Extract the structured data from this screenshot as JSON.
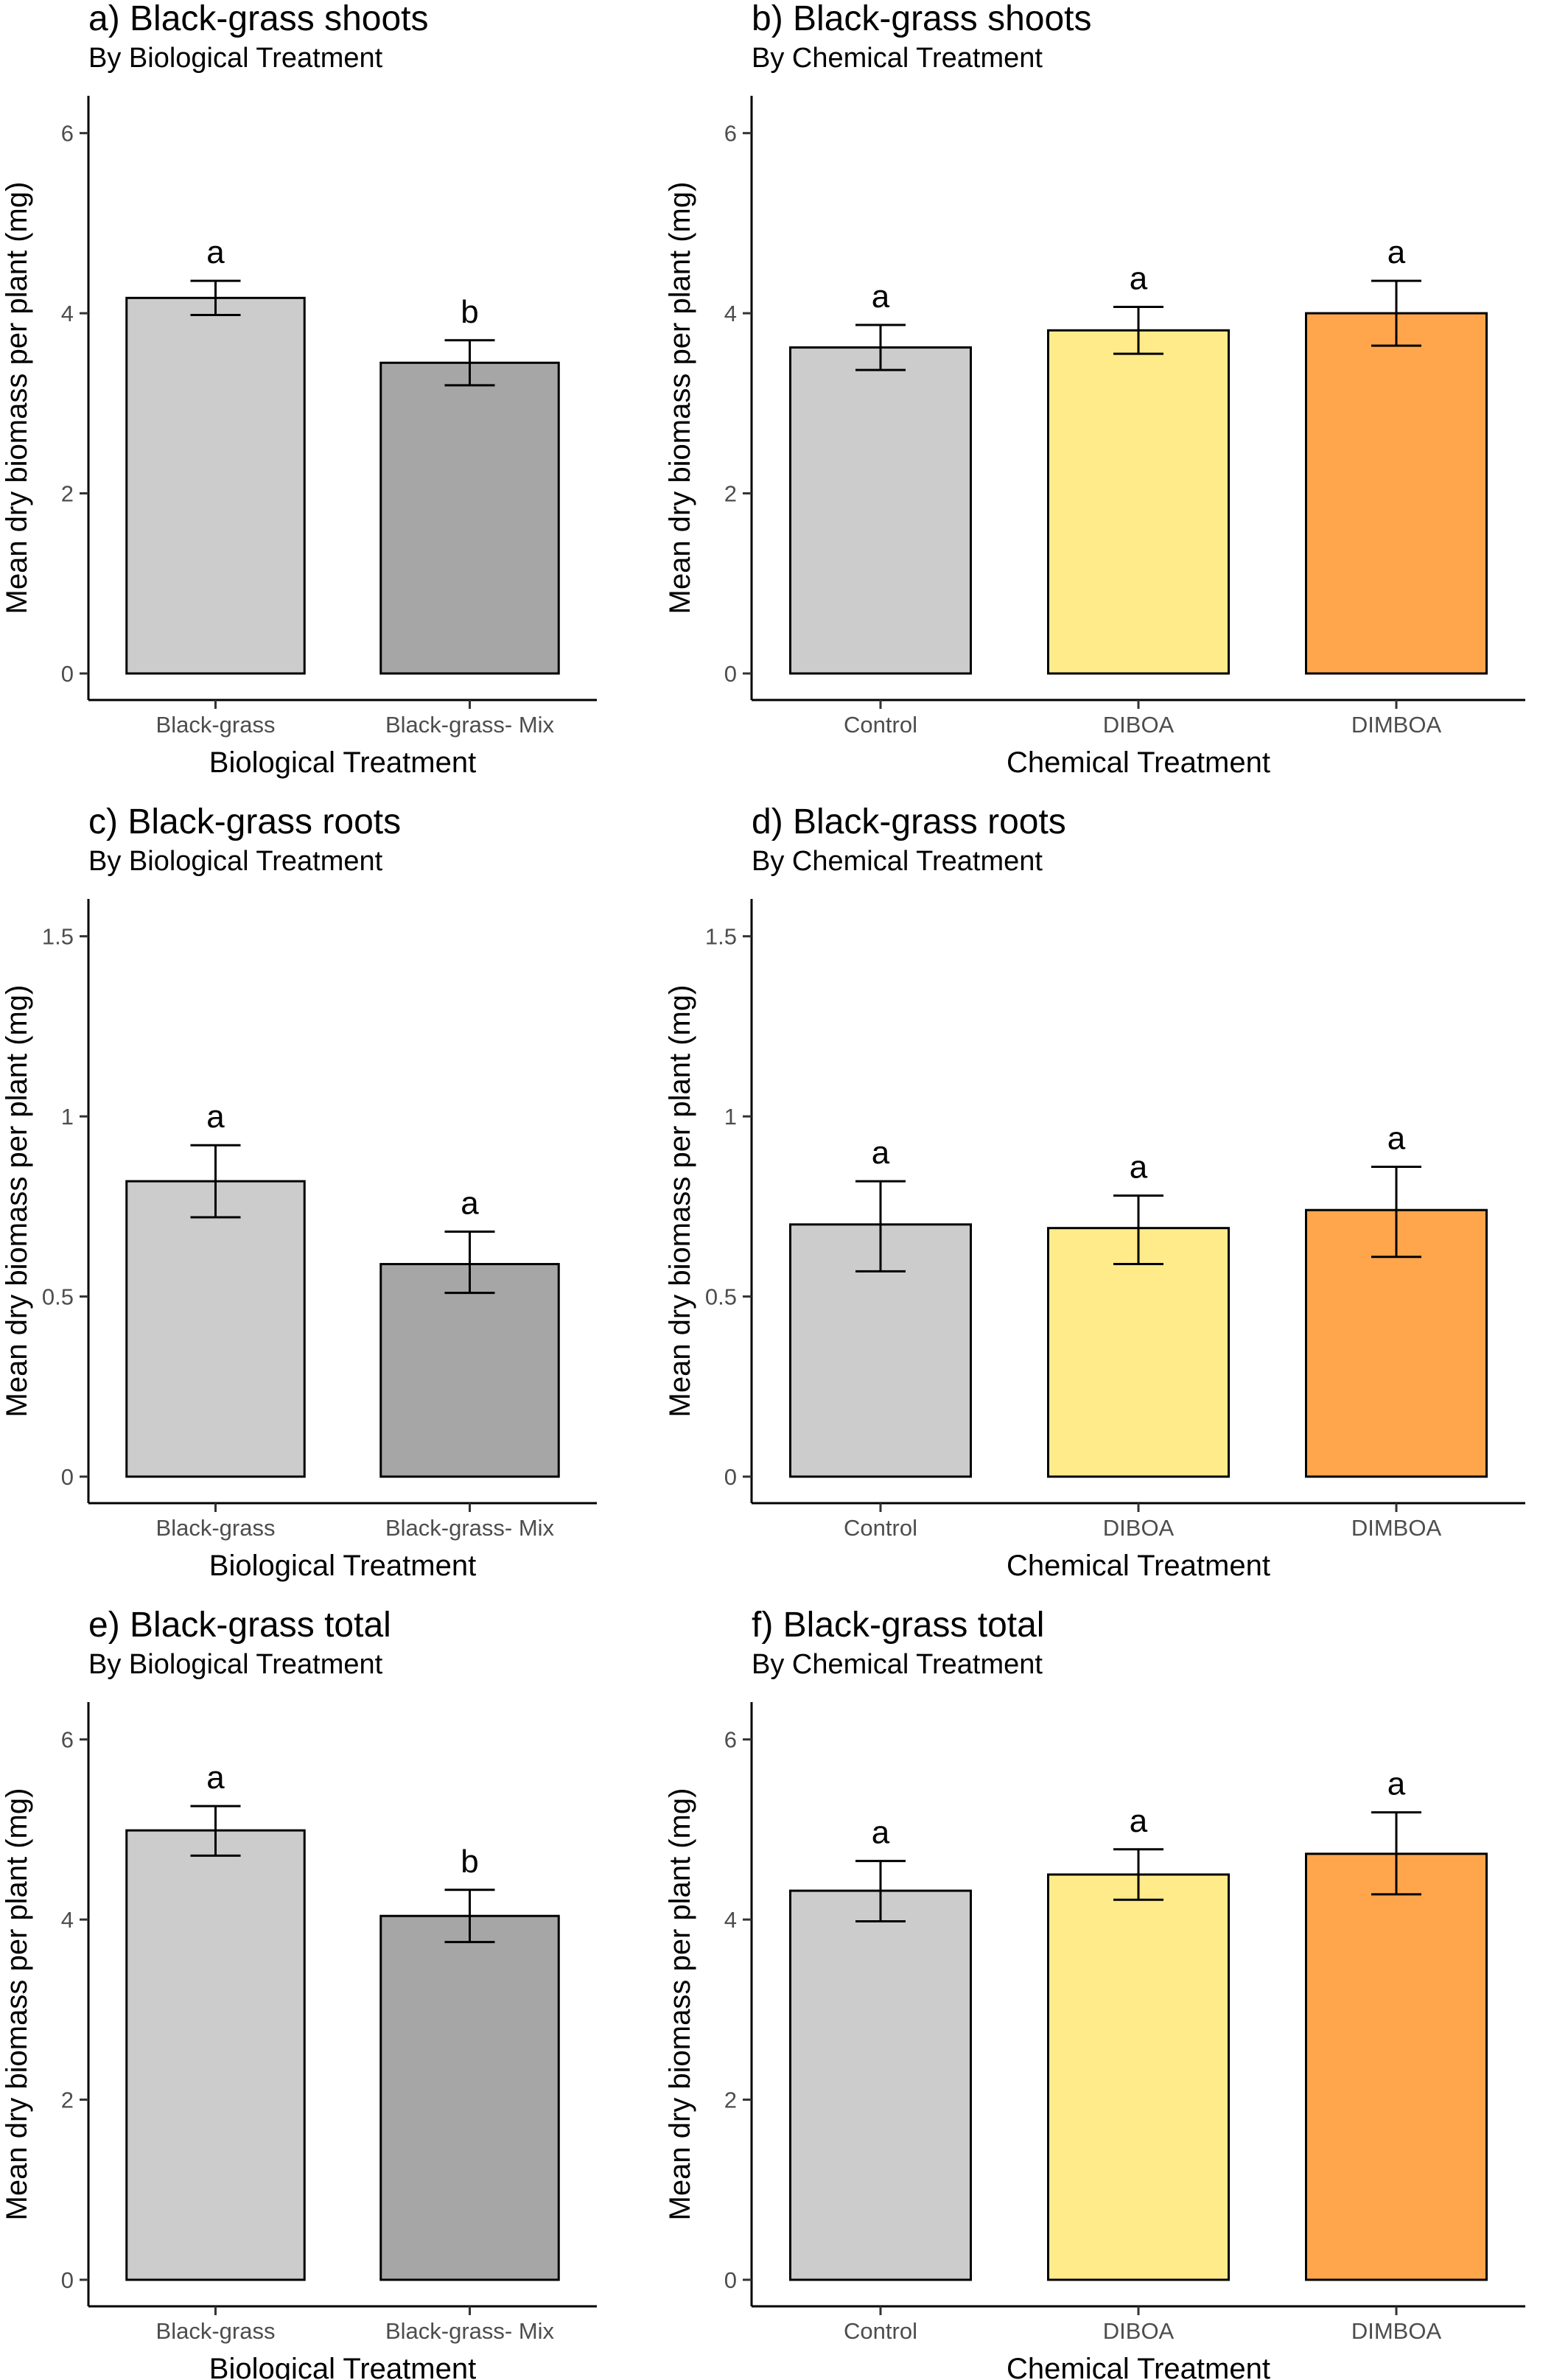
{
  "chart_data": [
    {
      "panel": "a",
      "type": "bar",
      "title": "a) Black-grass shoots",
      "subtitle": "By Biological Treatment",
      "xlabel": "Biological Treatment",
      "ylabel": "Mean dry biomass per plant (mg)",
      "ylim": [
        0,
        6.3
      ],
      "yticks": [
        "0",
        "2",
        "4",
        "6"
      ],
      "ytick_values": [
        0,
        2,
        4,
        6
      ],
      "categories": [
        "Black-grass",
        "Black-grass- Mix"
      ],
      "values": [
        4.17,
        3.45
      ],
      "error_low": [
        3.98,
        3.2
      ],
      "error_high": [
        4.36,
        3.7
      ],
      "letters": [
        "a",
        "b"
      ],
      "colors": [
        "#cccccc",
        "#a6a6a6"
      ],
      "grid": false
    },
    {
      "panel": "b",
      "type": "bar",
      "title": "b) Black-grass shoots",
      "subtitle": "By Chemical Treatment",
      "xlabel": "Chemical Treatment",
      "ylabel": "Mean dry biomass per plant (mg)",
      "ylim": [
        0,
        6.3
      ],
      "yticks": [
        "0",
        "2",
        "4",
        "6"
      ],
      "ytick_values": [
        0,
        2,
        4,
        6
      ],
      "categories": [
        "Control",
        "DIBOA",
        "DIMBOA"
      ],
      "values": [
        3.62,
        3.81,
        4.0
      ],
      "error_low": [
        3.37,
        3.55,
        3.64
      ],
      "error_high": [
        3.87,
        4.07,
        4.36
      ],
      "letters": [
        "a",
        "a",
        "a"
      ],
      "colors": [
        "#cccccc",
        "#ffeb8a",
        "#ffa64d"
      ],
      "grid": false
    },
    {
      "panel": "c",
      "type": "bar",
      "title": "c) Black-grass roots",
      "subtitle": "By Biological Treatment",
      "xlabel": "Biological Treatment",
      "ylabel": "Mean dry biomass per plant (mg)",
      "ylim": [
        0,
        1.575
      ],
      "yticks": [
        "0",
        "0.5",
        "1",
        "1.5"
      ],
      "ytick_values": [
        0,
        0.5,
        1,
        1.5
      ],
      "categories": [
        "Black-grass",
        "Black-grass- Mix"
      ],
      "values": [
        0.82,
        0.59
      ],
      "error_low": [
        0.72,
        0.51
      ],
      "error_high": [
        0.92,
        0.68
      ],
      "letters": [
        "a",
        "a"
      ],
      "colors": [
        "#cccccc",
        "#a6a6a6"
      ],
      "grid": false
    },
    {
      "panel": "d",
      "type": "bar",
      "title": "d) Black-grass roots",
      "subtitle": "By Chemical Treatment",
      "xlabel": "Chemical Treatment",
      "ylabel": "Mean dry biomass per plant (mg)",
      "ylim": [
        0,
        1.575
      ],
      "yticks": [
        "0",
        "0.5",
        "1",
        "1.5"
      ],
      "ytick_values": [
        0,
        0.5,
        1,
        1.5
      ],
      "categories": [
        "Control",
        "DIBOA",
        "DIMBOA"
      ],
      "values": [
        0.7,
        0.69,
        0.74
      ],
      "error_low": [
        0.57,
        0.59,
        0.61
      ],
      "error_high": [
        0.82,
        0.78,
        0.86
      ],
      "letters": [
        "a",
        "a",
        "a"
      ],
      "colors": [
        "#cccccc",
        "#ffeb8a",
        "#ffa64d"
      ],
      "grid": false
    },
    {
      "panel": "e",
      "type": "bar",
      "title": "e) Black-grass total",
      "subtitle": "By Biological Treatment",
      "xlabel": "Biological Treatment",
      "ylabel": "Mean dry biomass per plant (mg)",
      "ylim": [
        0,
        6.3
      ],
      "yticks": [
        "0",
        "2",
        "4",
        "6"
      ],
      "ytick_values": [
        0,
        2,
        4,
        6
      ],
      "categories": [
        "Black-grass",
        "Black-grass- Mix"
      ],
      "values": [
        4.99,
        4.04
      ],
      "error_low": [
        4.71,
        3.75
      ],
      "error_high": [
        5.26,
        4.33
      ],
      "letters": [
        "a",
        "b"
      ],
      "colors": [
        "#cccccc",
        "#a6a6a6"
      ],
      "grid": false
    },
    {
      "panel": "f",
      "type": "bar",
      "title": "f) Black-grass total",
      "subtitle": "By Chemical Treatment",
      "xlabel": "Chemical Treatment",
      "ylabel": "Mean dry biomass per plant (mg)",
      "ylim": [
        0,
        6.3
      ],
      "yticks": [
        "0",
        "2",
        "4",
        "6"
      ],
      "ytick_values": [
        0,
        2,
        4,
        6
      ],
      "categories": [
        "Control",
        "DIBOA",
        "DIMBOA"
      ],
      "values": [
        4.32,
        4.5,
        4.73
      ],
      "error_low": [
        3.98,
        4.22,
        4.28
      ],
      "error_high": [
        4.65,
        4.78,
        5.19
      ],
      "letters": [
        "a",
        "a",
        "a"
      ],
      "colors": [
        "#cccccc",
        "#ffeb8a",
        "#ffa64d"
      ],
      "grid": false
    }
  ]
}
